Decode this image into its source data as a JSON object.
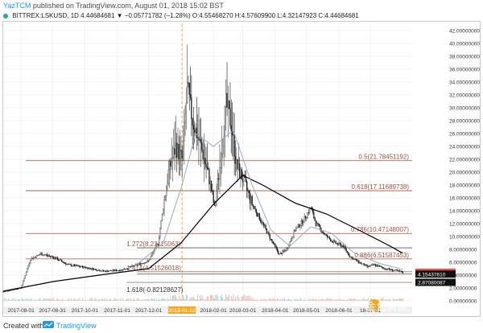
{
  "header": {
    "author": "YazTCM",
    "published_text": "published on TradingView.com, August 01, 2018 15:02 BST"
  },
  "symbol_bar": {
    "text": "BITTREX:LSKUSD, 1D  4.44684681  ▼ −0.05771782 (−1.28%)  O:4.55468270  H:4.57609900  L:4.32147923  C:4.44684681",
    "status_color": "#26a69a"
  },
  "footer": {
    "created_with": "Created with",
    "brand": "TradingView",
    "watermark": "金色财经"
  },
  "chart_data": {
    "type": "candlestick",
    "y_axis": {
      "min": 0,
      "max": 43,
      "scale": "linear",
      "ticks": [
        0,
        2,
        4,
        6,
        8,
        10,
        12,
        14,
        16,
        18,
        20,
        22,
        24,
        26,
        28,
        30,
        32,
        34,
        36,
        38,
        40,
        42
      ],
      "tick_labels": [
        "0.00000000",
        "2.00000000",
        "4.00000000",
        "6.00000000",
        "8.00000000",
        "10.00000000",
        "12.00000000",
        "14.00000000",
        "16.00000000",
        "18.00000000",
        "20.00000000",
        "22.00000000",
        "24.00000000",
        "26.00000000",
        "28.00000000",
        "30.00000000",
        "32.00000000",
        "34.00000000",
        "36.00000000",
        "38.00000000",
        "40.00000000",
        "42.00000000"
      ]
    },
    "x_axis": {
      "start": "2017-07-15",
      "end": "2018-08-10",
      "ticks": [
        "2017-08-01",
        "2017-08-31",
        "2017-10-01",
        "2017-11-01",
        "2017-12-01",
        "2018-01-02",
        "2018-02-01",
        "2018-03-01",
        "2018-04-01",
        "2018-05-01",
        "2018-06-01",
        "2018-07-01"
      ],
      "tick_labels": [
        "2017-08-01",
        "2017-08-31",
        "2017-10-01",
        "2017-11-01",
        "2017-12-01",
        "2018-01-02",
        "2018-02-01",
        "2018-03-01",
        "2018-04-01",
        "2018-05-01",
        "2018-06-01",
        "18-07-01"
      ],
      "highlight_tick": "2018-01-02"
    },
    "grid": true,
    "vertical_marker": "2018-01-02",
    "fib_levels": [
      {
        "label": "0.5(21.78451192)",
        "value": 21.78451192
      },
      {
        "label": "0.618(17.11689738)",
        "value": 17.11689738
      },
      {
        "label": "0.786(10.47148007)",
        "value": 10.47148007
      },
      {
        "label": "0.886(6.51587453)",
        "value": 6.51587453
      },
      {
        "label": "1.272(8.23115063)",
        "value": 8.23115063
      },
      {
        "label": "1.414(4.51526018)",
        "value": 4.51526018
      },
      {
        "label": "1.618(-0.82128627)",
        "value": -0.82128627
      }
    ],
    "support_levels": [
      {
        "value": 8.231,
        "start": "2017-11-20"
      },
      {
        "value": 4.154,
        "start": "2017-11-20"
      },
      {
        "value": 2.87,
        "start": "2017-11-10"
      }
    ],
    "price_labels": [
      {
        "label": "4.44684681",
        "value": 4.44684681,
        "color": "#ef5350"
      },
      {
        "label": "4.15437610",
        "value": 4.1543761,
        "color": "#111111"
      },
      {
        "label": "2.87080087",
        "value": 2.87080087,
        "color": "#111111"
      }
    ],
    "ohlc_keypoints": [
      [
        "2017-07-15",
        1.4
      ],
      [
        "2017-08-01",
        2.0
      ],
      [
        "2017-08-10",
        6.5
      ],
      [
        "2017-08-20",
        7.3
      ],
      [
        "2017-09-01",
        6.8
      ],
      [
        "2017-09-15",
        5.6
      ],
      [
        "2017-10-01",
        5.2
      ],
      [
        "2017-10-20",
        4.6
      ],
      [
        "2017-11-05",
        4.8
      ],
      [
        "2017-11-20",
        5.6
      ],
      [
        "2017-12-01",
        6.2
      ],
      [
        "2017-12-10",
        9.0
      ],
      [
        "2017-12-20",
        20.0
      ],
      [
        "2017-12-27",
        24.0
      ],
      [
        "2018-01-02",
        22.0
      ],
      [
        "2018-01-07",
        33.0
      ],
      [
        "2018-01-12",
        28.0
      ],
      [
        "2018-01-20",
        24.0
      ],
      [
        "2018-01-28",
        19.0
      ],
      [
        "2018-02-02",
        14.5
      ],
      [
        "2018-02-08",
        22.0
      ],
      [
        "2018-02-13",
        30.5
      ],
      [
        "2018-02-18",
        27.5
      ],
      [
        "2018-02-23",
        21.0
      ],
      [
        "2018-03-01",
        19.0
      ],
      [
        "2018-03-10",
        15.0
      ],
      [
        "2018-03-20",
        12.0
      ],
      [
        "2018-03-28",
        9.5
      ],
      [
        "2018-04-05",
        7.2
      ],
      [
        "2018-04-12",
        8.0
      ],
      [
        "2018-04-20",
        11.0
      ],
      [
        "2018-04-28",
        12.5
      ],
      [
        "2018-05-05",
        14.5
      ],
      [
        "2018-05-10",
        12.0
      ],
      [
        "2018-05-20",
        10.0
      ],
      [
        "2018-05-28",
        9.0
      ],
      [
        "2018-06-05",
        8.5
      ],
      [
        "2018-06-12",
        6.8
      ],
      [
        "2018-06-20",
        6.0
      ],
      [
        "2018-06-28",
        5.3
      ],
      [
        "2018-07-05",
        5.6
      ],
      [
        "2018-07-15",
        5.0
      ],
      [
        "2018-07-25",
        4.7
      ],
      [
        "2018-08-01",
        4.45
      ]
    ],
    "moving_averages": [
      {
        "color": "#000000",
        "points": [
          [
            "2017-07-15",
            1.5
          ],
          [
            "2017-09-01",
            3.0
          ],
          [
            "2017-10-15",
            4.0
          ],
          [
            "2017-12-01",
            5.0
          ],
          [
            "2018-01-01",
            9.0
          ],
          [
            "2018-02-01",
            15.0
          ],
          [
            "2018-03-01",
            19.5
          ],
          [
            "2018-03-20",
            18.0
          ],
          [
            "2018-04-20",
            15.2
          ],
          [
            "2018-05-20",
            13.5
          ],
          [
            "2018-06-20",
            11.0
          ],
          [
            "2018-07-20",
            8.5
          ],
          [
            "2018-08-01",
            7.4
          ]
        ]
      },
      {
        "color": "#8fa3b8",
        "points": [
          [
            "2017-11-15",
            5.0
          ],
          [
            "2017-12-15",
            9.0
          ],
          [
            "2018-01-02",
            18.0
          ],
          [
            "2018-01-15",
            26.0
          ],
          [
            "2018-02-01",
            24.0
          ],
          [
            "2018-02-20",
            26.5
          ],
          [
            "2018-03-10",
            18.0
          ],
          [
            "2018-03-28",
            11.0
          ],
          [
            "2018-04-15",
            8.5
          ],
          [
            "2018-05-05",
            11.5
          ],
          [
            "2018-05-25",
            10.5
          ],
          [
            "2018-06-15",
            7.5
          ],
          [
            "2018-07-10",
            5.8
          ],
          [
            "2018-08-01",
            4.9
          ]
        ]
      }
    ],
    "colors": {
      "up": "#26a69a",
      "down": "#333333",
      "fib": "#a0523d",
      "fib_text": "#a0523d",
      "grid": "#e8e8e8",
      "marker": "#f5a623"
    }
  }
}
